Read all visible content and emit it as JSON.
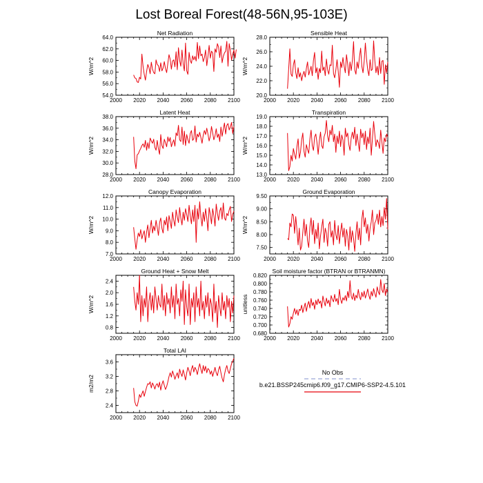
{
  "figure": {
    "title": "Lost Boreal Forest(48-56N,95-103E)"
  },
  "legend": {
    "entries": [
      {
        "label": "No Obs",
        "style": "dashed",
        "color": "#9aa6d6"
      },
      {
        "label": "b.e21.BSSP245cmip6.f09_g17.CMIP6-SSP2-4.5.101",
        "style": "solid",
        "color": "#e8000b"
      }
    ]
  },
  "colors": {
    "series": "#e8000b",
    "axis": "#000000"
  },
  "chart_data": [
    {
      "type": "line",
      "title": "Net Radiation",
      "ylabel": "W/m^2",
      "xlim": [
        2000,
        2100
      ],
      "ylim": [
        54,
        64
      ],
      "xticks": [
        2000,
        2020,
        2040,
        2060,
        2080,
        2100
      ],
      "yticks": [
        54,
        56,
        58,
        60,
        62,
        64
      ],
      "ytick_labels": [
        "54.0",
        "56.0",
        "58.0",
        "60.0",
        "62.0",
        "64.0"
      ],
      "x_start": 2015,
      "series": [
        {
          "values": [
            57.5,
            57.0,
            56.9,
            56.3,
            56.2,
            57.1,
            56.8,
            61.1,
            59.0,
            57.6,
            56.6,
            58.1,
            59.3,
            58.8,
            57.7,
            59.7,
            58.5,
            57.9,
            57.7,
            60.1,
            59.3,
            59.1,
            58.1,
            59.6,
            58.2,
            58.7,
            59.8,
            58.6,
            57.9,
            59.5,
            61.0,
            60.2,
            58.5,
            59.9,
            60.1,
            58.9,
            61.5,
            58.4,
            62.2,
            60.0,
            59.0,
            61.8,
            59.4,
            58.2,
            63.0,
            58.2,
            57.6,
            61.4,
            60.0,
            59.5,
            60.8,
            60.1,
            60.7,
            59.9,
            63.1,
            60.3,
            62.5,
            60.8,
            61.1,
            59.8,
            60.5,
            61.8,
            59.1,
            60.7,
            62.6,
            60.4,
            61.6,
            61.3,
            58.1,
            62.0,
            61.4,
            62.9,
            62.3,
            60.5,
            62.5,
            59.6,
            60.7,
            61.3,
            61.6,
            63.3,
            59.0,
            62.9,
            61.7,
            60.1,
            61.1,
            61.8,
            60.4,
            61.9
          ]
        }
      ]
    },
    {
      "type": "line",
      "title": "Sensible Heat",
      "ylabel": "W/m^2",
      "xlim": [
        2000,
        2100
      ],
      "ylim": [
        20,
        28
      ],
      "xticks": [
        2000,
        2020,
        2040,
        2060,
        2080,
        2100
      ],
      "yticks": [
        20,
        22,
        24,
        26,
        28
      ],
      "ytick_labels": [
        "20.0",
        "22.0",
        "24.0",
        "26.0",
        "28.0"
      ],
      "x_start": 2015,
      "series": [
        {
          "values": [
            20.9,
            23.6,
            26.4,
            22.9,
            22.6,
            24.2,
            24.9,
            23.1,
            22.3,
            23.8,
            22.5,
            23.1,
            22.0,
            22.8,
            23.3,
            22.5,
            23.7,
            24.6,
            22.8,
            23.4,
            24.0,
            22.7,
            24.8,
            25.9,
            23.1,
            23.8,
            22.2,
            23.7,
            23.1,
            26.1,
            23.4,
            23.9,
            22.7,
            25.0,
            23.5,
            22.9,
            24.2,
            24.1,
            26.9,
            23.0,
            22.4,
            23.5,
            24.9,
            23.3,
            21.1,
            24.6,
            23.8,
            25.2,
            24.0,
            23.1,
            25.6,
            24.3,
            22.7,
            24.6,
            23.4,
            24.8,
            27.4,
            23.5,
            22.9,
            24.6,
            23.7,
            25.3,
            26.5,
            24.0,
            23.1,
            24.7,
            27.2,
            25.0,
            23.5,
            22.7,
            24.9,
            23.4,
            23.6,
            27.5,
            24.8,
            23.1,
            24.0,
            22.8,
            25.2,
            23.0,
            24.7,
            24.8,
            21.5,
            24.2,
            23.1,
            24.6
          ]
        }
      ]
    },
    {
      "type": "line",
      "title": "Latent Heat",
      "ylabel": "W/m^2",
      "xlim": [
        2000,
        2100
      ],
      "ylim": [
        28,
        38
      ],
      "xticks": [
        2000,
        2020,
        2040,
        2060,
        2080,
        2100
      ],
      "yticks": [
        28,
        30,
        32,
        34,
        36,
        38
      ],
      "ytick_labels": [
        "28.0",
        "30.0",
        "32.0",
        "34.0",
        "36.0",
        "38.0"
      ],
      "x_start": 2015,
      "series": [
        {
          "values": [
            34.5,
            30.3,
            29.0,
            31.4,
            31.6,
            32.1,
            32.5,
            33.0,
            33.3,
            32.7,
            33.9,
            32.2,
            33.5,
            32.5,
            34.3,
            33.8,
            33.4,
            34.1,
            32.7,
            32.2,
            33.9,
            32.4,
            31.5,
            34.9,
            33.0,
            32.5,
            34.1,
            33.5,
            32.8,
            34.5,
            33.7,
            34.4,
            32.8,
            33.5,
            34.0,
            32.9,
            35.2,
            34.7,
            36.5,
            34.0,
            33.7,
            36.2,
            33.2,
            35.5,
            33.0,
            34.9,
            34.0,
            33.4,
            35.1,
            35.6,
            33.9,
            34.2,
            36.4,
            33.6,
            35.0,
            34.5,
            35.3,
            34.4,
            33.4,
            34.8,
            35.6,
            34.9,
            36.0,
            35.0,
            33.8,
            34.6,
            36.3,
            35.2,
            34.0,
            34.7,
            35.9,
            34.4,
            35.0,
            33.7,
            36.2,
            34.6,
            35.8,
            36.9,
            35.0,
            36.5,
            36.8,
            35.7,
            36.2,
            37.0,
            35.1,
            36.3
          ]
        }
      ]
    },
    {
      "type": "line",
      "title": "Transpiration",
      "ylabel": "W/m^2",
      "xlim": [
        2000,
        2100
      ],
      "ylim": [
        13,
        19
      ],
      "xticks": [
        2000,
        2020,
        2040,
        2060,
        2080,
        2100
      ],
      "yticks": [
        13,
        14,
        15,
        16,
        17,
        18,
        19
      ],
      "ytick_labels": [
        "13.0",
        "14.0",
        "15.0",
        "16.0",
        "17.0",
        "18.0",
        "19.0"
      ],
      "x_start": 2015,
      "series": [
        {
          "values": [
            17.3,
            13.4,
            13.8,
            15.0,
            14.4,
            15.7,
            15.1,
            14.6,
            15.9,
            16.7,
            14.7,
            15.3,
            16.6,
            17.3,
            15.4,
            14.8,
            16.1,
            15.6,
            15.2,
            16.7,
            17.6,
            16.0,
            15.5,
            16.9,
            17.2,
            16.3,
            15.1,
            16.5,
            17.4,
            16.0,
            15.7,
            16.9,
            17.3,
            18.6,
            17.0,
            16.4,
            17.6,
            17.1,
            18.1,
            16.4,
            17.2,
            15.3,
            17.0,
            16.2,
            17.5,
            15.9,
            17.1,
            16.6,
            15.0,
            17.8,
            16.9,
            17.3,
            16.1,
            15.5,
            16.8,
            17.4,
            16.7,
            17.9,
            16.0,
            17.2,
            16.3,
            15.4,
            17.7,
            16.8,
            17.3,
            16.1,
            17.5,
            15.6,
            16.9,
            16.2,
            17.8,
            15.0,
            16.7,
            18.5,
            17.2,
            15.9,
            16.6,
            16.3,
            15.7,
            17.6,
            16.4,
            15.2,
            16.8,
            16.4,
            17.2,
            16.9
          ]
        }
      ]
    },
    {
      "type": "line",
      "title": "Canopy Evaporation",
      "ylabel": "W/m^2",
      "xlim": [
        2000,
        2100
      ],
      "ylim": [
        7,
        12
      ],
      "xticks": [
        2000,
        2020,
        2040,
        2060,
        2080,
        2100
      ],
      "yticks": [
        7,
        8,
        9,
        10,
        11,
        12
      ],
      "ytick_labels": [
        "7.0",
        "8.0",
        "9.0",
        "10.0",
        "11.0",
        "12.0"
      ],
      "x_start": 2015,
      "series": [
        {
          "values": [
            9.3,
            8.3,
            7.4,
            8.2,
            8.8,
            8.5,
            9.1,
            8.3,
            8.7,
            9.0,
            8.0,
            8.9,
            9.5,
            8.4,
            9.2,
            9.9,
            8.8,
            9.4,
            9.0,
            9.9,
            9.3,
            8.6,
            9.7,
            10.1,
            9.2,
            8.8,
            9.9,
            9.5,
            10.2,
            9.0,
            10.3,
            9.8,
            9.2,
            10.6,
            9.9,
            9.4,
            10.8,
            10.2,
            9.7,
            11.0,
            10.1,
            9.5,
            10.6,
            9.9,
            10.9,
            10.4,
            9.8,
            11.2,
            10.3,
            9.6,
            10.8,
            9.8,
            11.2,
            8.0,
            10.9,
            10.0,
            11.5,
            10.2,
            9.4,
            10.6,
            9.8,
            10.9,
            10.1,
            9.0,
            11.0,
            10.4,
            9.6,
            10.9,
            10.3,
            9.4,
            11.3,
            10.5,
            9.9,
            10.7,
            11.0,
            10.0,
            11.4,
            10.1,
            9.9,
            10.5,
            10.3,
            10.8,
            11.1,
            9.8,
            10.4,
            10.7
          ]
        }
      ]
    },
    {
      "type": "line",
      "title": "Ground Evaporation",
      "ylabel": "W/m^2",
      "xlim": [
        2000,
        2100
      ],
      "ylim": [
        7.25,
        9.5
      ],
      "xticks": [
        2000,
        2020,
        2040,
        2060,
        2080,
        2100
      ],
      "yticks": [
        7.5,
        8.0,
        8.5,
        9.0,
        9.5
      ],
      "ytick_labels": [
        "7.50",
        "8.00",
        "8.50",
        "9.00",
        "9.50"
      ],
      "x_start": 2015,
      "series": [
        {
          "values": [
            7.85,
            7.8,
            8.45,
            8.3,
            8.8,
            8.75,
            8.05,
            8.7,
            8.2,
            7.6,
            8.25,
            7.4,
            7.55,
            8.1,
            8.6,
            7.95,
            8.4,
            7.75,
            7.5,
            8.3,
            8.65,
            8.0,
            8.55,
            7.65,
            8.2,
            7.85,
            8.45,
            7.45,
            7.95,
            8.3,
            8.6,
            7.7,
            8.25,
            8.05,
            7.55,
            8.4,
            8.5,
            7.9,
            8.15,
            7.6,
            8.55,
            8.0,
            7.8,
            8.35,
            7.65,
            8.1,
            8.45,
            7.9,
            8.25,
            7.55,
            8.2,
            7.95,
            7.4,
            8.3,
            7.7,
            8.15,
            7.85,
            7.35,
            8.05,
            8.5,
            7.8,
            8.25,
            7.6,
            8.6,
            8.95,
            8.3,
            8.65,
            8.05,
            8.4,
            7.75,
            8.25,
            8.5,
            8.95,
            8.0,
            8.45,
            8.55,
            8.8,
            8.4,
            8.95,
            8.3,
            8.7,
            8.35,
            9.05,
            8.6,
            9.4,
            8.2
          ]
        }
      ]
    },
    {
      "type": "line",
      "title": "Ground Heat + Snow Melt",
      "ylabel": "W/m^2",
      "xlim": [
        2000,
        2100
      ],
      "ylim": [
        0.6,
        2.6
      ],
      "xticks": [
        2000,
        2020,
        2040,
        2060,
        2080,
        2100
      ],
      "yticks": [
        0.8,
        1.2,
        1.6,
        2.0,
        2.4
      ],
      "ytick_labels": [
        "0.8",
        "1.2",
        "1.6",
        "2.0",
        "2.4"
      ],
      "x_start": 2015,
      "series": [
        {
          "values": [
            2.2,
            1.7,
            1.4,
            2.0,
            1.6,
            2.6,
            1.0,
            1.9,
            1.2,
            1.8,
            1.5,
            2.2,
            1.0,
            1.7,
            2.0,
            1.4,
            1.9,
            1.3,
            2.2,
            1.8,
            1.4,
            1.9,
            1.6,
            1.5,
            2.3,
            1.4,
            1.9,
            1.2,
            2.0,
            1.6,
            1.8,
            1.3,
            2.2,
            1.5,
            1.9,
            1.1,
            2.3,
            1.6,
            1.8,
            1.2,
            2.1,
            1.7,
            2.4,
            0.9,
            2.1,
            1.5,
            1.2,
            2.3,
            0.9,
            1.8,
            1.5,
            2.0,
            1.0,
            2.2,
            1.5,
            1.8,
            1.2,
            2.4,
            1.4,
            1.7,
            1.1,
            1.9,
            1.5,
            2.0,
            1.2,
            1.8,
            1.6,
            1.0,
            2.3,
            1.3,
            1.7,
            0.8,
            1.9,
            1.5,
            1.2,
            2.0,
            1.4,
            1.7,
            1.1,
            1.9,
            1.5,
            1.8,
            1.0,
            1.7,
            1.3,
            1.9
          ]
        }
      ]
    },
    {
      "type": "line",
      "title": "Soil moisture factor (BTRAN or BTRANMN)",
      "ylabel": "unitless",
      "xlim": [
        2000,
        2100
      ],
      "ylim": [
        0.68,
        0.82
      ],
      "xticks": [
        2000,
        2020,
        2040,
        2060,
        2080,
        2100
      ],
      "yticks": [
        0.68,
        0.7,
        0.72,
        0.74,
        0.76,
        0.78,
        0.8,
        0.82
      ],
      "ytick_labels": [
        "0.680",
        "0.700",
        "0.720",
        "0.740",
        "0.760",
        "0.780",
        "0.800",
        "0.820"
      ],
      "x_start": 2015,
      "series": [
        {
          "values": [
            0.745,
            0.695,
            0.703,
            0.72,
            0.714,
            0.729,
            0.74,
            0.726,
            0.737,
            0.723,
            0.738,
            0.735,
            0.748,
            0.73,
            0.742,
            0.753,
            0.733,
            0.748,
            0.757,
            0.741,
            0.764,
            0.747,
            0.755,
            0.738,
            0.76,
            0.749,
            0.763,
            0.752,
            0.758,
            0.741,
            0.77,
            0.757,
            0.746,
            0.765,
            0.752,
            0.76,
            0.744,
            0.771,
            0.762,
            0.756,
            0.774,
            0.757,
            0.764,
            0.749,
            0.786,
            0.763,
            0.752,
            0.766,
            0.76,
            0.771,
            0.758,
            0.781,
            0.766,
            0.807,
            0.77,
            0.762,
            0.777,
            0.759,
            0.772,
            0.765,
            0.786,
            0.769,
            0.761,
            0.779,
            0.768,
            0.782,
            0.765,
            0.775,
            0.787,
            0.771,
            0.762,
            0.781,
            0.77,
            0.788,
            0.776,
            0.767,
            0.792,
            0.78,
            0.773,
            0.81,
            0.785,
            0.778,
            0.8,
            0.771,
            0.787,
            0.779
          ]
        }
      ]
    },
    {
      "type": "line",
      "title": "Total LAI",
      "ylabel": "m2/m2",
      "xlim": [
        2000,
        2100
      ],
      "ylim": [
        2.2,
        3.8
      ],
      "xticks": [
        2000,
        2020,
        2040,
        2060,
        2080,
        2100
      ],
      "yticks": [
        2.4,
        2.8,
        3.2,
        3.6
      ],
      "ytick_labels": [
        "2.4",
        "2.8",
        "3.2",
        "3.6"
      ],
      "x_start": 2015,
      "series": [
        {
          "values": [
            2.88,
            2.5,
            2.4,
            2.38,
            2.52,
            2.7,
            2.62,
            2.72,
            2.8,
            2.65,
            2.78,
            2.9,
            3.0,
            2.98,
            3.05,
            2.88,
            3.02,
            2.95,
            2.85,
            2.96,
            3.0,
            2.9,
            3.04,
            2.82,
            2.98,
            3.08,
            2.95,
            2.84,
            2.92,
            3.05,
            3.2,
            3.3,
            3.18,
            3.35,
            3.25,
            3.12,
            3.22,
            3.3,
            3.15,
            3.4,
            3.28,
            3.2,
            3.38,
            3.25,
            3.1,
            3.3,
            3.45,
            3.35,
            3.22,
            3.4,
            3.5,
            3.32,
            3.45,
            3.38,
            3.25,
            3.42,
            3.55,
            3.4,
            3.28,
            3.5,
            3.35,
            3.48,
            3.3,
            3.42,
            3.38,
            3.26,
            3.35,
            3.2,
            3.32,
            3.45,
            3.3,
            3.22,
            3.38,
            3.48,
            3.3,
            3.15,
            3.05,
            3.25,
            3.4,
            3.5,
            3.35,
            3.28,
            3.42,
            3.55,
            3.62,
            3.7
          ]
        }
      ]
    }
  ]
}
